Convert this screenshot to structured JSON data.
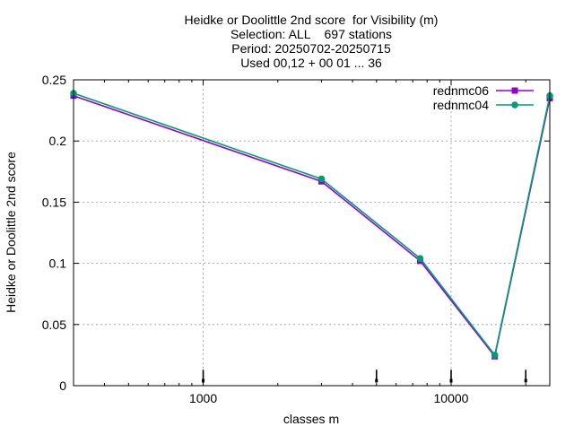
{
  "chart_data": {
    "type": "line",
    "title_lines": [
      "Heidke or Doolittle 2nd score  for Visibility (m)",
      "Selection: ALL    697 stations",
      "Period: 20250702-20250715",
      "Used 00,12 + 00 01 ... 36"
    ],
    "xlabel": "classes m",
    "ylabel": "Heidke or Doolittle 2nd score",
    "x_scale": "log",
    "xlim": [
      300,
      25000
    ],
    "ylim": [
      0,
      0.25
    ],
    "x_ticks": [
      {
        "value": 1000,
        "label": "1000"
      },
      {
        "value": 10000,
        "label": "10000"
      }
    ],
    "y_ticks": [
      {
        "value": 0,
        "label": "0"
      },
      {
        "value": 0.05,
        "label": "0.05"
      },
      {
        "value": 0.1,
        "label": "0.1"
      },
      {
        "value": 0.15,
        "label": "0.15"
      },
      {
        "value": 0.2,
        "label": "0.2"
      },
      {
        "value": 0.25,
        "label": "0.25"
      }
    ],
    "grid": true,
    "legend_position": "top-right",
    "class_markers_x": [
      1000,
      5000,
      10000,
      20000
    ],
    "series": [
      {
        "name": "rednmc06",
        "color": "#9400d3",
        "marker": "square",
        "x": [
          300,
          3000,
          7500,
          15000,
          25000
        ],
        "y": [
          0.237,
          0.167,
          0.102,
          0.024,
          0.235
        ]
      },
      {
        "name": "rednmc04",
        "color": "#009e73",
        "marker": "circle",
        "x": [
          300,
          3000,
          7500,
          15000,
          25000
        ],
        "y": [
          0.239,
          0.169,
          0.104,
          0.025,
          0.237
        ]
      }
    ]
  }
}
